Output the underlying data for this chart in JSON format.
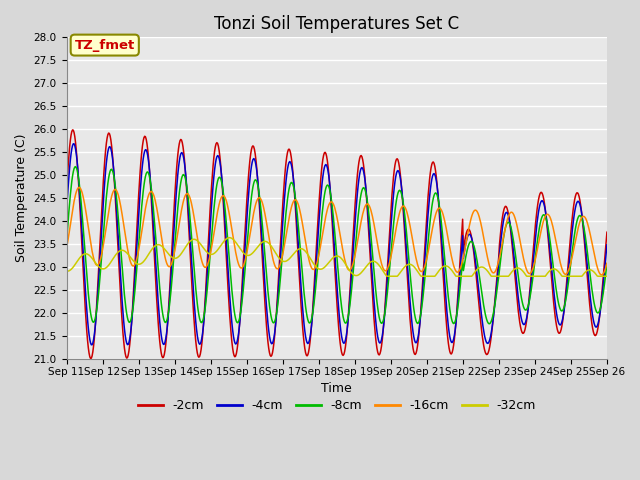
{
  "title": "Tonzi Soil Temperatures Set C",
  "xlabel": "Time",
  "ylabel": "Soil Temperature (C)",
  "ylim": [
    21.0,
    28.0
  ],
  "yticks": [
    21.0,
    21.5,
    22.0,
    22.5,
    23.0,
    23.5,
    24.0,
    24.5,
    25.0,
    25.5,
    26.0,
    26.5,
    27.0,
    27.5,
    28.0
  ],
  "xtick_labels": [
    "Sep 11",
    "Sep 12",
    "Sep 13",
    "Sep 14",
    "Sep 15",
    "Sep 16",
    "Sep 17",
    "Sep 18",
    "Sep 19",
    "Sep 20",
    "Sep 21",
    "Sep 22",
    "Sep 23",
    "Sep 24",
    "Sep 25",
    "Sep 26"
  ],
  "legend_labels": [
    "-2cm",
    "-4cm",
    "-8cm",
    "-16cm",
    "-32cm"
  ],
  "legend_colors": [
    "#cc0000",
    "#0000cc",
    "#00bb00",
    "#ff8800",
    "#cccc00"
  ],
  "annotation_text": "TZ_fmet",
  "annotation_color": "#cc0000",
  "annotation_bg": "#ffffcc",
  "annotation_border": "#888800",
  "plot_bg": "#e8e8e8",
  "grid_color": "#ffffff",
  "title_fontsize": 12,
  "axis_fontsize": 9,
  "legend_fontsize": 9,
  "n_points": 720,
  "days": 15
}
